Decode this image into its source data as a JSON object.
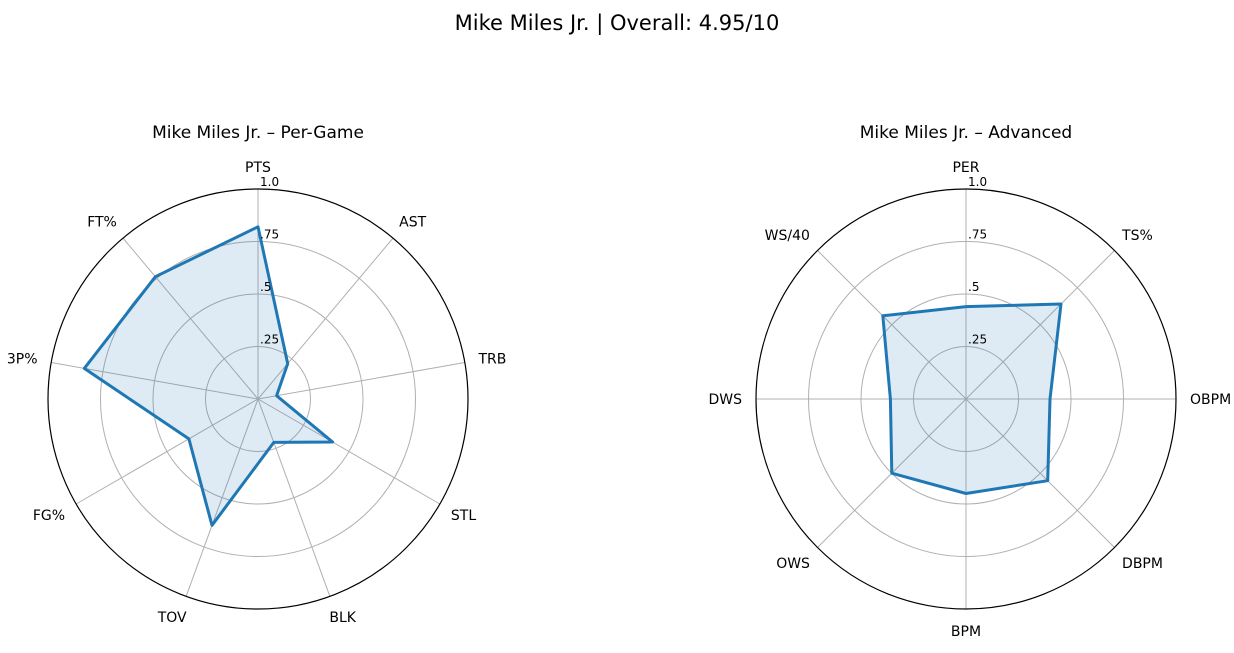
{
  "suptitle": "Mike Miles Jr. | Overall: 4.95/10",
  "chart_data": [
    {
      "type": "radar",
      "title": "Mike Miles Jr. – Per-Game",
      "categories": [
        "PTS",
        "AST",
        "TRB",
        "STL",
        "BLK",
        "TOV",
        "FG%",
        "3P%",
        "FT%"
      ],
      "values": [
        0.82,
        0.22,
        0.09,
        0.41,
        0.22,
        0.64,
        0.38,
        0.84,
        0.76
      ],
      "rlim": [
        0,
        1
      ],
      "rticks": [
        0.25,
        0.5,
        0.75,
        1.0
      ],
      "rtick_labels": [
        ".25",
        ".5",
        ".75",
        "1.0"
      ],
      "color": "#1f77b4",
      "grid": true
    },
    {
      "type": "radar",
      "title": "Mike Miles Jr. – Advanced",
      "categories": [
        "PER",
        "TS%",
        "OBPM",
        "DBPM",
        "BPM",
        "OWS",
        "DWS",
        "WS/40"
      ],
      "values": [
        0.44,
        0.64,
        0.4,
        0.55,
        0.45,
        0.5,
        0.36,
        0.56
      ],
      "rlim": [
        0,
        1
      ],
      "rticks": [
        0.25,
        0.5,
        0.75,
        1.0
      ],
      "rtick_labels": [
        ".25",
        ".5",
        ".75",
        "1.0"
      ],
      "color": "#1f77b4",
      "grid": true
    }
  ]
}
